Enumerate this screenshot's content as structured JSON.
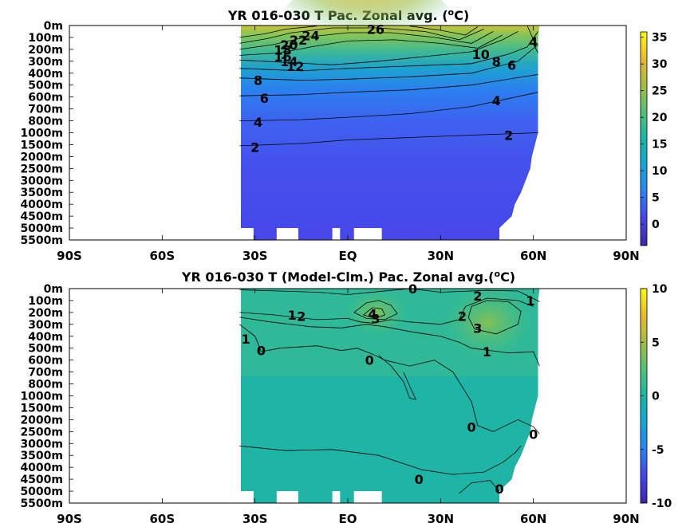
{
  "chart_data": [
    {
      "type": "heatmap",
      "title": "YR 016-030 T Pac. Zonal avg. (",
      "title_sup": "o",
      "title_end": "C)",
      "x_ticks": [
        "90S",
        "60S",
        "30S",
        "EQ",
        "30N",
        "60N",
        "90N"
      ],
      "x_values": [
        -90,
        -60,
        -30,
        0,
        30,
        60,
        90
      ],
      "y_ticks": [
        "0m",
        "100m",
        "200m",
        "300m",
        "400m",
        "500m",
        "600m",
        "700m",
        "800m",
        "1000m",
        "1500m",
        "2000m",
        "2500m",
        "3000m",
        "3500m",
        "4000m",
        "4500m",
        "5000m",
        "5500m"
      ],
      "colorbar_ticks": [
        "35",
        "30",
        "25",
        "20",
        "15",
        "10",
        "5",
        "0"
      ],
      "colorbar_values": [
        35,
        30,
        25,
        20,
        15,
        10,
        5,
        0
      ],
      "colorbar_range": [
        -4,
        36
      ],
      "data_lat_range": [
        -35,
        62
      ],
      "contour_labels": [
        {
          "text": "26",
          "lat": 9,
          "depth_idx": 0.3
        },
        {
          "text": "24",
          "lat": -12,
          "depth_idx": 0.85
        },
        {
          "text": "22",
          "lat": -16,
          "depth_idx": 1.2
        },
        {
          "text": "20",
          "lat": -19,
          "depth_idx": 1.6
        },
        {
          "text": "18",
          "lat": -21,
          "depth_idx": 2.05
        },
        {
          "text": "16",
          "lat": -21,
          "depth_idx": 2.6
        },
        {
          "text": "14",
          "lat": -19,
          "depth_idx": 3.0
        },
        {
          "text": "12",
          "lat": -17,
          "depth_idx": 3.4
        },
        {
          "text": "10",
          "lat": 43,
          "depth_idx": 2.4
        },
        {
          "text": "8",
          "lat": 48,
          "depth_idx": 3.0
        },
        {
          "text": "6",
          "lat": 53,
          "depth_idx": 3.3
        },
        {
          "text": "4",
          "lat": 60,
          "depth_idx": 1.35
        },
        {
          "text": "8",
          "lat": -29,
          "depth_idx": 4.6
        },
        {
          "text": "6",
          "lat": -27,
          "depth_idx": 6.1
        },
        {
          "text": "4",
          "lat": 48,
          "depth_idx": 6.3
        },
        {
          "text": "4",
          "lat": -29,
          "depth_idx": 8.1
        },
        {
          "text": "2",
          "lat": 52,
          "depth_idx": 9.2
        },
        {
          "text": "2",
          "lat": -30,
          "depth_idx": 10.2
        }
      ]
    },
    {
      "type": "heatmap",
      "title": "YR 016-030 T (Model-Clm.) Pac. Zonal avg.(",
      "title_sup": "o",
      "title_end": "C)",
      "x_ticks": [
        "90S",
        "60S",
        "30S",
        "EQ",
        "30N",
        "60N",
        "90N"
      ],
      "x_values": [
        -90,
        -60,
        -30,
        0,
        30,
        60,
        90
      ],
      "y_ticks": [
        "0m",
        "100m",
        "200m",
        "300m",
        "400m",
        "500m",
        "600m",
        "700m",
        "800m",
        "1000m",
        "1500m",
        "2000m",
        "2500m",
        "3000m",
        "3500m",
        "4000m",
        "4500m",
        "5000m",
        "5500m"
      ],
      "colorbar_ticks": [
        "10",
        "5",
        "0",
        "-5",
        "-10"
      ],
      "colorbar_values": [
        10,
        5,
        0,
        -5,
        -10
      ],
      "colorbar_range": [
        -10,
        10
      ],
      "data_lat_range": [
        -35,
        62
      ],
      "contour_labels": [
        {
          "text": "0",
          "lat": 21,
          "depth_idx": 0.0
        },
        {
          "text": "2",
          "lat": 42,
          "depth_idx": 0.6
        },
        {
          "text": "1",
          "lat": 59,
          "depth_idx": 1.0
        },
        {
          "text": "1",
          "lat": -18,
          "depth_idx": 2.2
        },
        {
          "text": "2",
          "lat": -15,
          "depth_idx": 2.3
        },
        {
          "text": "3",
          "lat": 9,
          "depth_idx": 2.5
        },
        {
          "text": "4",
          "lat": 8,
          "depth_idx": 2.1
        },
        {
          "text": "2",
          "lat": 37,
          "depth_idx": 2.3
        },
        {
          "text": "3",
          "lat": 42,
          "depth_idx": 3.3
        },
        {
          "text": "1",
          "lat": -33,
          "depth_idx": 4.2
        },
        {
          "text": "0",
          "lat": -28,
          "depth_idx": 5.2
        },
        {
          "text": "1",
          "lat": 45,
          "depth_idx": 5.3
        },
        {
          "text": "0",
          "lat": 7,
          "depth_idx": 6.0
        },
        {
          "text": "0",
          "lat": 40,
          "depth_idx": 11.6
        },
        {
          "text": "0",
          "lat": 60,
          "depth_idx": 12.2
        },
        {
          "text": "0",
          "lat": 23,
          "depth_idx": 16.0
        },
        {
          "text": "0",
          "lat": 49,
          "depth_idx": 16.8
        }
      ]
    }
  ]
}
